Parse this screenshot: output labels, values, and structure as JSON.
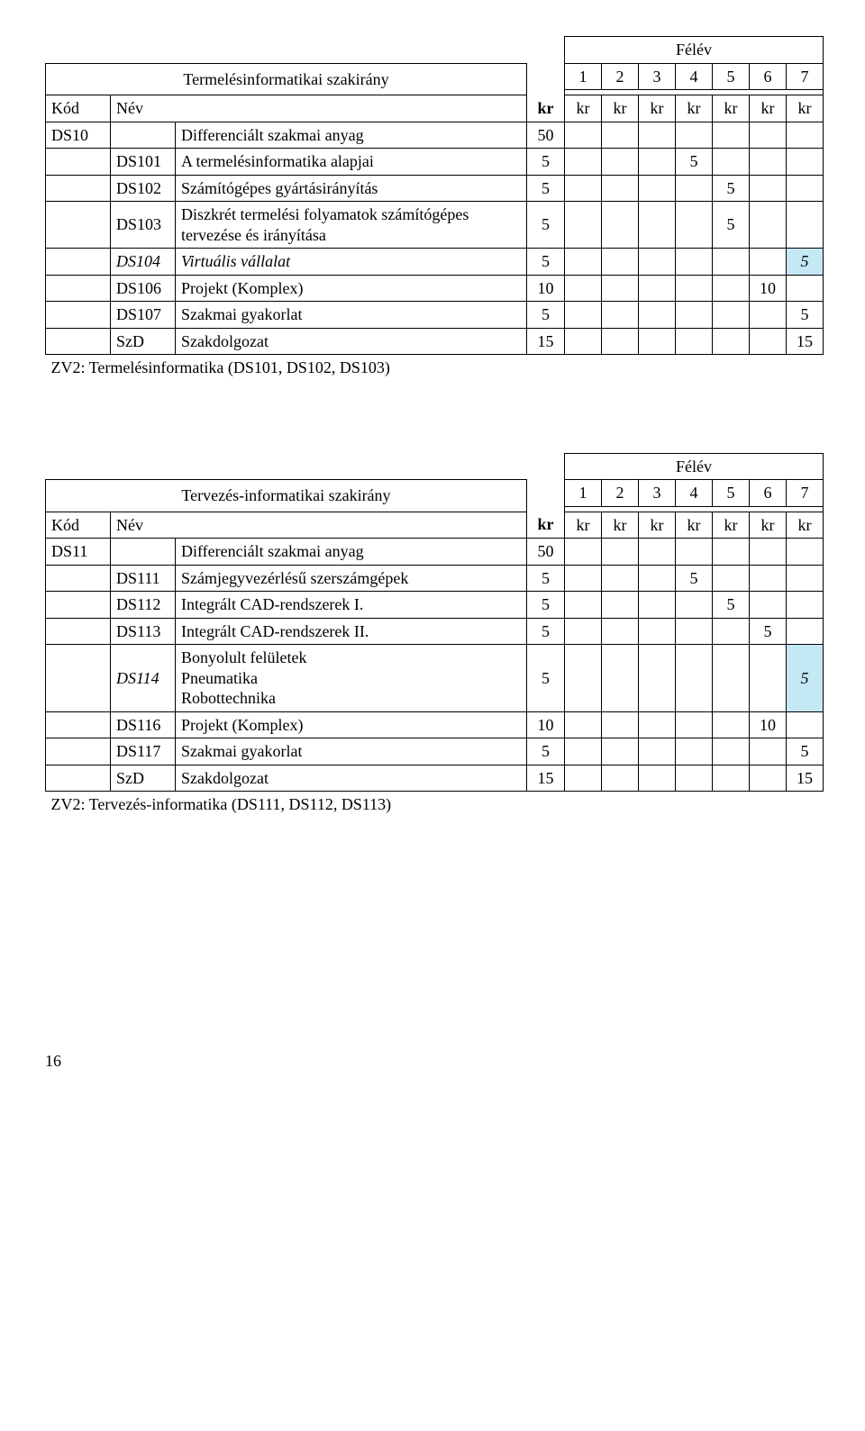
{
  "labels": {
    "felev": "Félév",
    "kod": "Kód",
    "nev": "Név",
    "kr": "kr",
    "sem": [
      "1",
      "2",
      "3",
      "4",
      "5",
      "6",
      "7"
    ]
  },
  "t1": {
    "title": "Termelésinformatikai szakirány",
    "rows": [
      {
        "c1": "DS10",
        "c2": "",
        "name": "Differenciált szakmai anyag",
        "kr": "50",
        "s": [
          "",
          "",
          "",
          "",
          "",
          "",
          ""
        ],
        "ital_c1": false,
        "ital_name": false,
        "hl": []
      },
      {
        "c1": "",
        "c2": "DS101",
        "name": "A termelésinformatika alapjai",
        "kr": "5",
        "s": [
          "",
          "",
          "",
          "5",
          "",
          "",
          ""
        ],
        "ital_c1": false,
        "ital_name": false,
        "hl": []
      },
      {
        "c1": "",
        "c2": "DS102",
        "name": "Számítógépes gyártásirányítás",
        "kr": "5",
        "s": [
          "",
          "",
          "",
          "",
          "5",
          "",
          ""
        ],
        "ital_c1": false,
        "ital_name": false,
        "hl": []
      },
      {
        "c1": "",
        "c2": "DS103",
        "name": "Diszkrét termelési folyamatok számítógépes tervezése és irányítása",
        "kr": "5",
        "s": [
          "",
          "",
          "",
          "",
          "5",
          "",
          ""
        ],
        "ital_c1": false,
        "ital_name": false,
        "hl": []
      },
      {
        "c1": "",
        "c2": "DS104",
        "name": "Virtuális vállalat",
        "kr": "5",
        "s": [
          "",
          "",
          "",
          "",
          "",
          "",
          "5"
        ],
        "ital_c1": true,
        "ital_name": true,
        "hl": [
          6
        ]
      },
      {
        "c1": "",
        "c2": "DS106",
        "name": "Projekt (Komplex)",
        "kr": "10",
        "s": [
          "",
          "",
          "",
          "",
          "",
          "10",
          ""
        ],
        "ital_c1": false,
        "ital_name": false,
        "hl": []
      },
      {
        "c1": "",
        "c2": "DS107",
        "name": "Szakmai gyakorlat",
        "kr": "5",
        "s": [
          "",
          "",
          "",
          "",
          "",
          "",
          "5"
        ],
        "ital_c1": false,
        "ital_name": false,
        "hl": []
      },
      {
        "c1": "",
        "c2": "SzD",
        "name": "Szakdolgozat",
        "kr": "15",
        "s": [
          "",
          "",
          "",
          "",
          "",
          "",
          "15"
        ],
        "ital_c1": false,
        "ital_name": false,
        "hl": []
      }
    ],
    "footer": "ZV2: Termelésinformatika (DS101, DS102, DS103)"
  },
  "t2": {
    "title": "Tervezés-informatikai szakirány",
    "rows": [
      {
        "c1": "DS11",
        "c2": "",
        "name": "Differenciált szakmai anyag",
        "kr": "50",
        "s": [
          "",
          "",
          "",
          "",
          "",
          "",
          ""
        ],
        "ital_c1": false,
        "ital_name": false,
        "hl": []
      },
      {
        "c1": "",
        "c2": "DS111",
        "name": "Számjegyvezérlésű szerszámgépek",
        "kr": "5",
        "s": [
          "",
          "",
          "",
          "5",
          "",
          "",
          ""
        ],
        "ital_c1": false,
        "ital_name": false,
        "hl": []
      },
      {
        "c1": "",
        "c2": "DS112",
        "name": "Integrált CAD-rendszerek I.",
        "kr": "5",
        "s": [
          "",
          "",
          "",
          "",
          "5",
          "",
          ""
        ],
        "ital_c1": false,
        "ital_name": false,
        "hl": []
      },
      {
        "c1": "",
        "c2": "DS113",
        "name": "Integrált CAD-rendszerek II.",
        "kr": "5",
        "s": [
          "",
          "",
          "",
          "",
          "",
          "5",
          ""
        ],
        "ital_c1": false,
        "ital_name": false,
        "hl": []
      },
      {
        "c1": "",
        "c2": "DS114",
        "name": "Bonyolult felületek\nPneumatika\nRobottechnika",
        "kr": "5",
        "s": [
          "",
          "",
          "",
          "",
          "",
          "",
          "5"
        ],
        "ital_c1": true,
        "ital_name": false,
        "hl": [
          6
        ]
      },
      {
        "c1": "",
        "c2": "DS116",
        "name": "Projekt (Komplex)",
        "kr": "10",
        "s": [
          "",
          "",
          "",
          "",
          "",
          "10",
          ""
        ],
        "ital_c1": false,
        "ital_name": false,
        "hl": []
      },
      {
        "c1": "",
        "c2": "DS117",
        "name": "Szakmai gyakorlat",
        "kr": "5",
        "s": [
          "",
          "",
          "",
          "",
          "",
          "",
          "5"
        ],
        "ital_c1": false,
        "ital_name": false,
        "hl": []
      },
      {
        "c1": "",
        "c2": "SzD",
        "name": "Szakdolgozat",
        "kr": "15",
        "s": [
          "",
          "",
          "",
          "",
          "",
          "",
          "15"
        ],
        "ital_c1": false,
        "ital_name": false,
        "hl": []
      }
    ],
    "footer": "ZV2: Tervezés-informatika (DS111, DS112, DS113)"
  },
  "page": "16"
}
